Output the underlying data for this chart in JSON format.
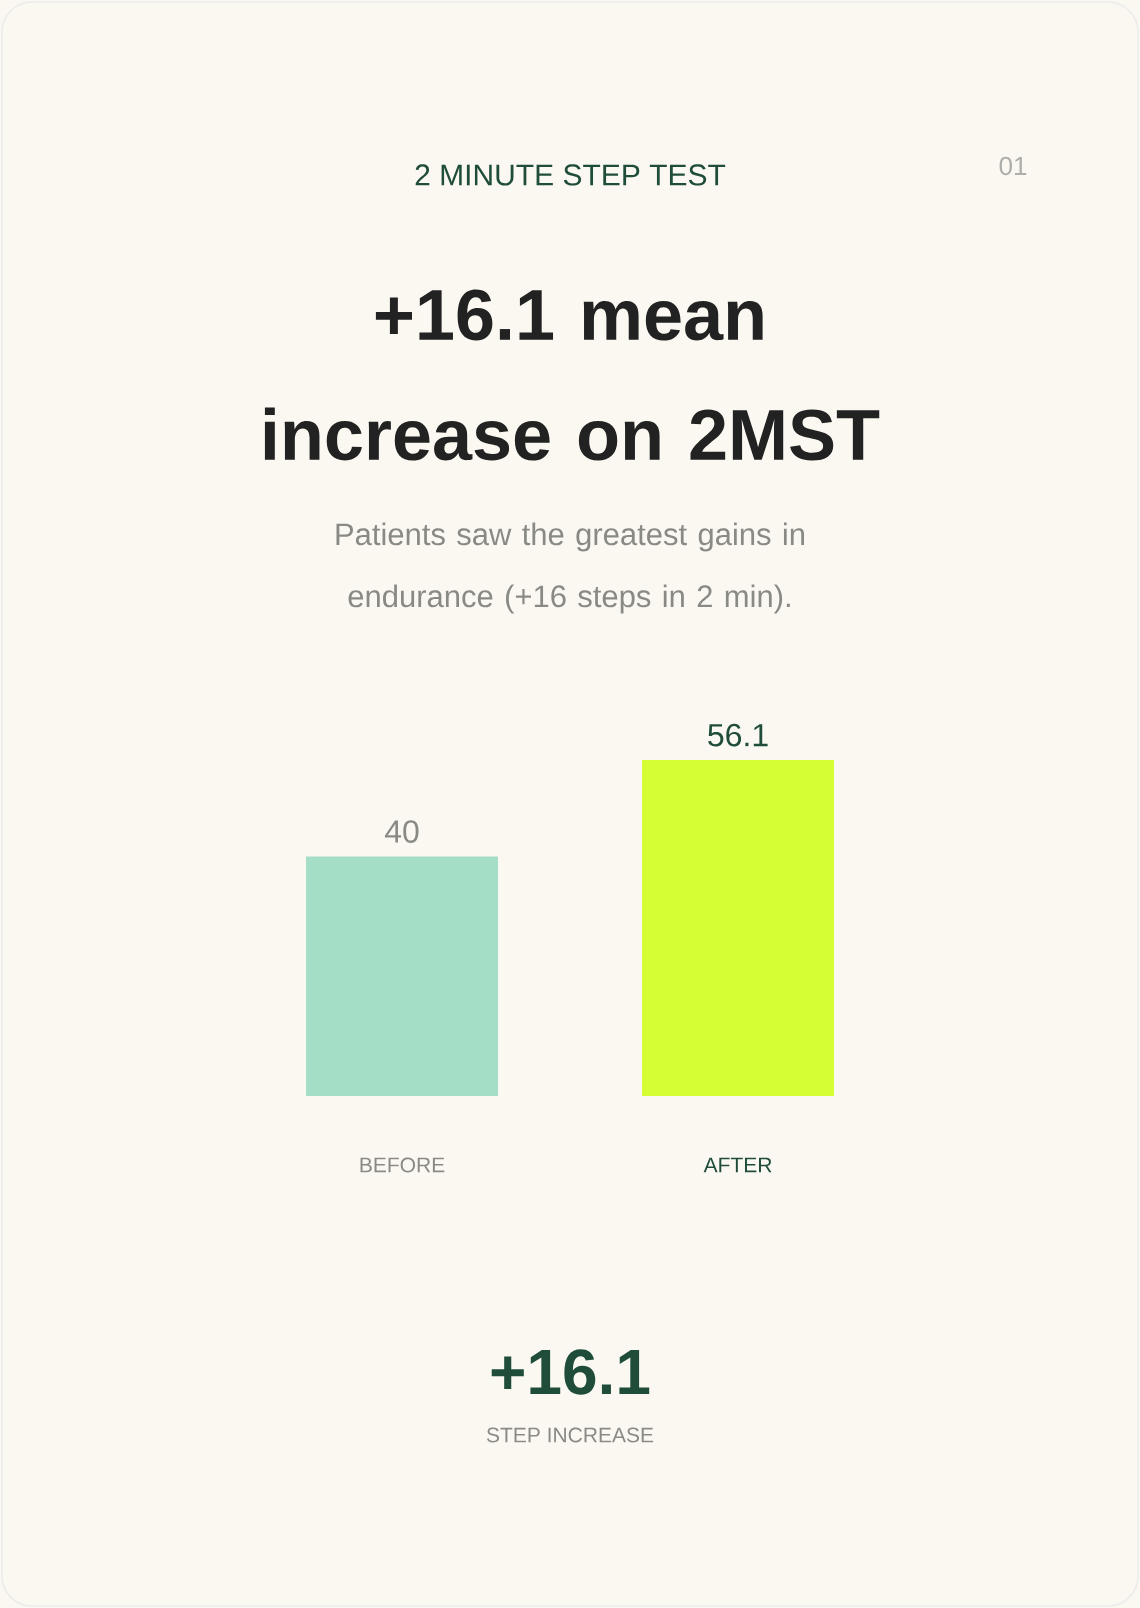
{
  "chart_data": {
    "type": "bar",
    "title": "+16.1 mean increase on 2MST",
    "subtitle": "Patients saw the greatest gains in endurance (+16 steps in 2 min).",
    "categories": [
      "BEFORE",
      "AFTER"
    ],
    "values": [
      40,
      56.1
    ],
    "colors": [
      "#a4dec6",
      "#d5ff33"
    ],
    "data_labels": true,
    "annotations": [
      "2 MINUTE STEP TEST",
      "01",
      "+16.1",
      "STEP INCREASE"
    ]
  }
}
